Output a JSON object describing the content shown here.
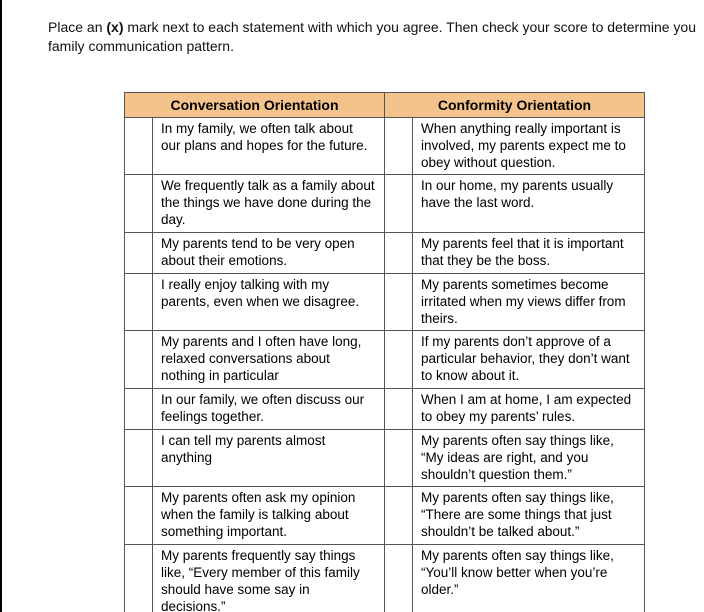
{
  "instructions_pre": "Place an ",
  "instructions_bold": "(x)",
  "instructions_post": " mark next to each statement with which you agree.  Then check your score to determine you",
  "instructions_line2": "family communication pattern.",
  "colors": {
    "header_bg": "#f4c38c",
    "page_bg": "#ffffff",
    "border": "#555555",
    "text": "#000000"
  },
  "headers": {
    "left": "Conversation Orientation",
    "right": "Conformity Orientation"
  },
  "rows": [
    {
      "left": "In my family, we often talk about our plans and hopes for the future.",
      "right": "When anything really important is involved, my parents expect me to obey without question."
    },
    {
      "left": "We frequently talk as a family about the things we have done during the day.",
      "right": "In our home, my parents usually have the last word."
    },
    {
      "left": "My parents tend to be very open about their emotions.",
      "right": "My parents feel that it is important that they be the boss."
    },
    {
      "left": "I really enjoy talking with my parents, even when we disagree.",
      "right": "My parents sometimes become irritated when my views differ from theirs."
    },
    {
      "left": "My parents and I often have long, relaxed conversations about nothing in particular",
      "right": "If my parents don’t approve of a particular behavior, they don’t want to know about it."
    },
    {
      "left": "In our family, we often discuss our feelings together.",
      "right": "When I am at home, I am expected to obey my parents’ rules."
    },
    {
      "left": "I can tell my parents almost anything",
      "right": "My parents often say things like, “My ideas are right, and you shouldn’t question them.”"
    },
    {
      "left": "My parents often ask my opinion when the family is talking about something important.",
      "right": "My parents often say things like, “There are some things that just shouldn’t be talked about.”"
    },
    {
      "left": "My parents frequently say things like, “Every member of this family should have some say in decisions.”",
      "right": "My parents often say things like, “You’ll know better when you’re older.”"
    }
  ]
}
